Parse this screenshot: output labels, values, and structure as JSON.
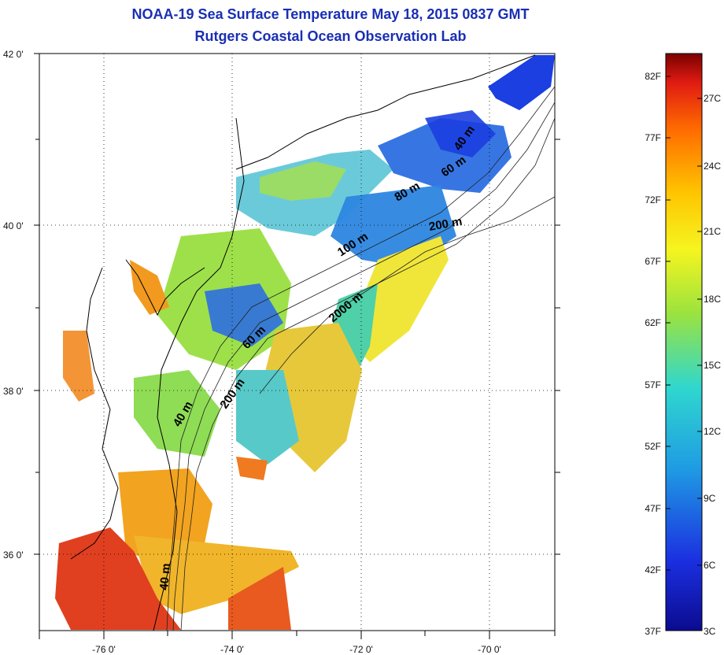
{
  "title": "NOAA-19 Sea Surface Temperature May 18, 2015 0837 GMT",
  "subtitle": "Rutgers Coastal Ocean Observation Lab",
  "map": {
    "x_ticks": [
      "-76 0'",
      "-74 0'",
      "-72 0'",
      "-70 0'"
    ],
    "y_ticks": [
      "42 0'",
      "40 0'",
      "38 0'",
      "36 0'"
    ],
    "grid": "dotted",
    "contour_labels": [
      "40 m",
      "60 m",
      "80 m",
      "100 m",
      "200 m",
      "2000 m",
      "200 m",
      "60 m",
      "40 m",
      "200 m",
      "40 m"
    ]
  },
  "colorbar": {
    "fahrenheit": [
      "82F",
      "77F",
      "72F",
      "67F",
      "62F",
      "57F",
      "52F",
      "47F",
      "42F",
      "37F"
    ],
    "celsius": [
      "27C",
      "24C",
      "21C",
      "18C",
      "15C",
      "12C",
      "9C",
      "6C",
      "3C"
    ],
    "colors": [
      "#8b0000",
      "#e01b12",
      "#ff7a00",
      "#ffd000",
      "#f5f51f",
      "#9be33e",
      "#2fd7cf",
      "#1f9be3",
      "#1b3fe0",
      "#0b0b8f"
    ]
  }
}
